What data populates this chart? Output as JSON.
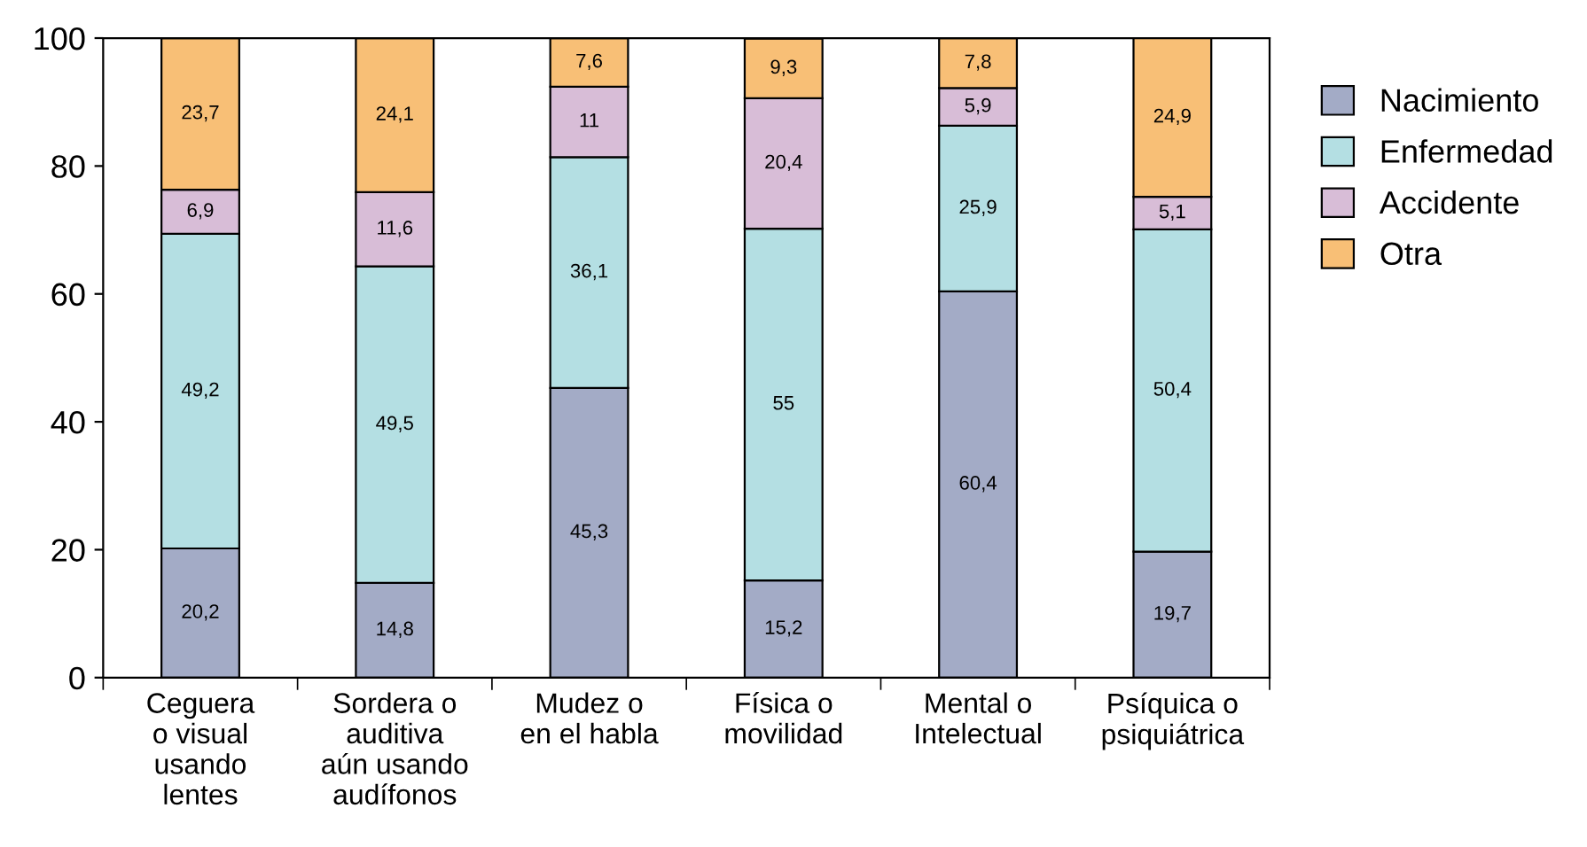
{
  "chart_data": {
    "type": "bar",
    "stacked": true,
    "categories": [
      "Ceguera\no visual\nusando\nlentes",
      "Sordera o\nauditiva\naún usando\naudífonos",
      "Mudez o\nen el habla",
      "Física o\nmovilidad",
      "Mental o\nIntelectual",
      "Psíquica o\npsiquiátrica"
    ],
    "series": [
      {
        "name": "Nacimiento",
        "color": "#a3abc6",
        "values": [
          20.2,
          14.8,
          45.3,
          15.2,
          60.4,
          19.7
        ],
        "value_labels": [
          "20,2",
          "14,8",
          "45,3",
          "15,2",
          "60,4",
          "19,7"
        ]
      },
      {
        "name": "Enfermedad",
        "color": "#b4dfe3",
        "values": [
          49.2,
          49.5,
          36.1,
          55,
          25.9,
          50.4
        ],
        "value_labels": [
          "49,2",
          "49,5",
          "36,1",
          "55",
          "25,9",
          "50,4"
        ]
      },
      {
        "name": "Accidente",
        "color": "#d8bdd7",
        "values": [
          6.9,
          11.6,
          11,
          20.4,
          5.9,
          5.1
        ],
        "value_labels": [
          "6,9",
          "11,6",
          "11",
          "20,4",
          "5,9",
          "5,1"
        ]
      },
      {
        "name": "Otra",
        "color": "#f8bf76",
        "values": [
          23.7,
          24.1,
          7.6,
          9.3,
          7.8,
          24.9
        ],
        "value_labels": [
          "23,7",
          "24,1",
          "7,6",
          "9,3",
          "7,8",
          "24,9"
        ]
      }
    ],
    "ylim": [
      0,
      100
    ],
    "yticks": [
      0,
      20,
      40,
      60,
      80,
      100
    ],
    "grid": false,
    "legend": "right"
  }
}
